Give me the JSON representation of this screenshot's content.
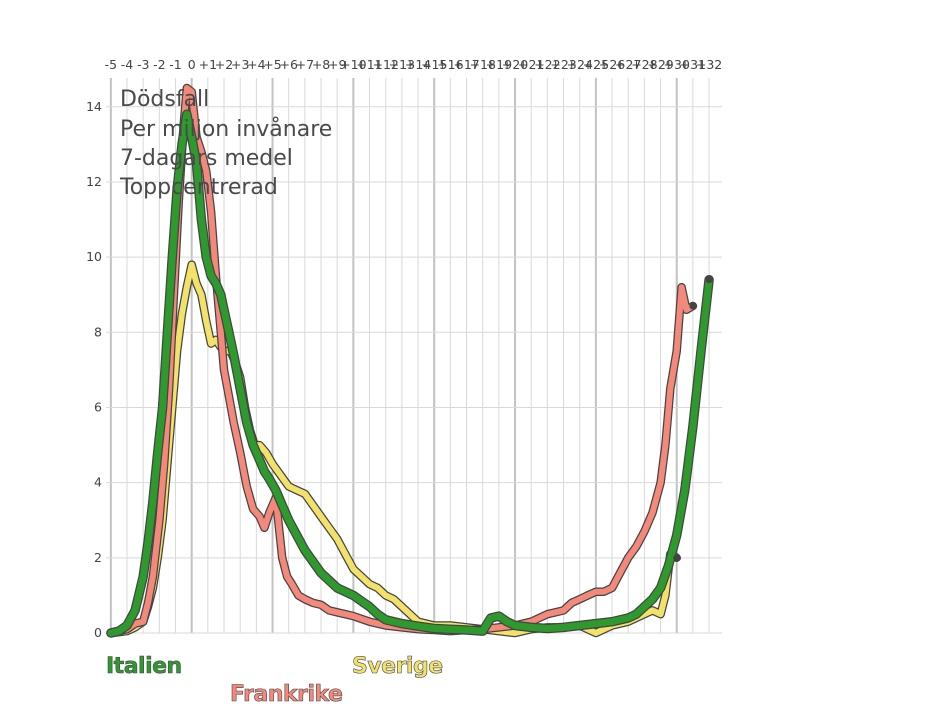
{
  "chart_data": {
    "type": "line",
    "title_lines": [
      "Dödsfall",
      "Per miljon invånare",
      "7-dagars medel",
      "Toppcentrerad"
    ],
    "xlabel": "",
    "ylabel": "",
    "xlim": [
      -5.3,
      32.8
    ],
    "ylim": [
      0,
      14.5
    ],
    "y_ticks": [
      "0",
      "2",
      "4",
      "6",
      "8",
      "10",
      "12",
      "14"
    ],
    "x_ticks": [
      "-5",
      "-4",
      "-3",
      "-2",
      "-1",
      "0",
      "+1",
      "+2",
      "+3",
      "+4",
      "+5",
      "+6",
      "+7",
      "+8",
      "+9",
      "+10",
      "+11",
      "+12",
      "+13",
      "+14",
      "+15",
      "+16",
      "+17",
      "+18",
      "+19",
      "+20",
      "+21",
      "+22",
      "+23",
      "+24",
      "+25",
      "+26",
      "+27",
      "+28",
      "+29",
      "+30",
      "+31",
      "+32"
    ],
    "grid": true,
    "colors": {
      "Frankrike": "#f4897b",
      "Italien": "#2e9a2e",
      "Sverige": "#f3e26a",
      "outline": "#444444",
      "grid": "#d9d9d9",
      "grid_major": "#c2c2c2"
    },
    "series": [
      {
        "name": "Frankrike",
        "x": [
          -5,
          -4.5,
          -4,
          -3.5,
          -3,
          -2.7,
          -2.4,
          -2,
          -1.7,
          -1.4,
          -1.1,
          -0.8,
          -0.5,
          -0.3,
          0,
          0.3,
          0.6,
          0.9,
          1.2,
          1.5,
          1.8,
          2,
          2.3,
          2.6,
          3,
          3.4,
          3.8,
          4.2,
          4.5,
          4.8,
          5.2,
          5.6,
          5.9,
          6.2,
          6.6,
          7,
          7.5,
          8,
          8.5,
          9,
          9.5,
          10,
          11,
          12,
          13,
          14,
          15,
          16,
          17,
          18,
          19,
          20,
          21,
          22,
          23,
          23.5,
          24,
          24.5,
          25,
          25.5,
          26,
          26.5,
          27,
          27.5,
          28,
          28.5,
          29,
          29.3,
          29.6,
          30,
          30.3,
          30.6,
          31
        ],
        "y": [
          0,
          0.05,
          0.1,
          0.25,
          0.3,
          0.8,
          1.5,
          3.0,
          4.5,
          6.5,
          9.0,
          11.5,
          13.5,
          14.5,
          14.4,
          13.2,
          12.8,
          12.3,
          11.2,
          9.5,
          8.0,
          7.0,
          6.3,
          5.6,
          4.8,
          3.9,
          3.3,
          3.1,
          2.8,
          3.2,
          3.6,
          2.0,
          1.5,
          1.3,
          1.0,
          0.9,
          0.8,
          0.75,
          0.6,
          0.55,
          0.5,
          0.45,
          0.3,
          0.2,
          0.15,
          0.1,
          0.08,
          0.05,
          0.08,
          0.1,
          0.15,
          0.2,
          0.3,
          0.5,
          0.6,
          0.8,
          0.9,
          1.0,
          1.1,
          1.1,
          1.2,
          1.6,
          2.0,
          2.3,
          2.7,
          3.2,
          4.0,
          5.0,
          6.5,
          7.5,
          9.2,
          8.6,
          8.7
        ]
      },
      {
        "name": "Italien",
        "x": [
          -5,
          -4.5,
          -4,
          -3.5,
          -3,
          -2.7,
          -2.4,
          -2.1,
          -1.8,
          -1.5,
          -1.2,
          -0.9,
          -0.6,
          -0.3,
          0,
          0.3,
          0.6,
          0.9,
          1.2,
          1.5,
          1.8,
          2,
          2.3,
          2.6,
          3,
          3.4,
          3.8,
          4.2,
          4.5,
          4.8,
          5.2,
          5.6,
          6,
          6.5,
          7,
          7.5,
          8,
          8.5,
          9,
          9.5,
          10,
          10.5,
          11,
          11.5,
          12,
          13,
          14,
          15,
          16,
          17,
          18,
          18.5,
          19,
          19.5,
          20,
          21,
          22,
          23,
          24,
          25,
          26,
          27,
          27.5,
          28,
          28.5,
          29,
          29.5,
          30,
          30.5,
          31,
          31.5,
          32
        ],
        "y": [
          0,
          0.05,
          0.2,
          0.6,
          1.5,
          2.4,
          3.5,
          4.8,
          6.0,
          8.0,
          10.0,
          11.8,
          13.0,
          13.8,
          13.2,
          12.5,
          11.0,
          10.0,
          9.5,
          9.3,
          9.0,
          8.6,
          8.0,
          7.4,
          6.5,
          5.6,
          5.0,
          4.6,
          4.3,
          4.1,
          3.8,
          3.4,
          3.0,
          2.6,
          2.2,
          1.9,
          1.6,
          1.4,
          1.2,
          1.1,
          1.0,
          0.85,
          0.7,
          0.5,
          0.35,
          0.25,
          0.18,
          0.12,
          0.1,
          0.08,
          0.05,
          0.4,
          0.45,
          0.3,
          0.2,
          0.15,
          0.12,
          0.15,
          0.2,
          0.25,
          0.3,
          0.4,
          0.5,
          0.7,
          0.9,
          1.2,
          1.8,
          2.6,
          3.8,
          5.5,
          7.5,
          9.4
        ]
      },
      {
        "name": "Sverige",
        "x": [
          -5,
          -4.5,
          -4,
          -3.5,
          -3,
          -2.7,
          -2.4,
          -2.1,
          -1.8,
          -1.5,
          -1.2,
          -0.9,
          -0.6,
          -0.3,
          0,
          0.3,
          0.6,
          0.9,
          1.2,
          1.5,
          1.8,
          2.1,
          2.4,
          2.7,
          3,
          3.3,
          3.6,
          3.9,
          4.2,
          4.6,
          5,
          5.5,
          6,
          6.5,
          7,
          7.5,
          8,
          8.5,
          9,
          9.5,
          10,
          10.5,
          11,
          11.5,
          12,
          12.5,
          13,
          13.5,
          14,
          15,
          16,
          17,
          18,
          19,
          20,
          21,
          22,
          23,
          24,
          25,
          26,
          27,
          28,
          28.5,
          29,
          29.3,
          29.6,
          30
        ],
        "y": [
          0,
          0.02,
          0.05,
          0.15,
          0.3,
          0.7,
          1.2,
          2.0,
          3.0,
          4.5,
          6.0,
          7.5,
          8.5,
          9.2,
          9.8,
          9.3,
          9.0,
          8.3,
          7.7,
          7.8,
          7.6,
          7.5,
          7.5,
          7.2,
          6.8,
          6.0,
          5.4,
          5.0,
          5.0,
          4.8,
          4.5,
          4.2,
          3.9,
          3.8,
          3.7,
          3.4,
          3.1,
          2.8,
          2.5,
          2.1,
          1.7,
          1.5,
          1.3,
          1.2,
          1.0,
          0.9,
          0.7,
          0.5,
          0.3,
          0.2,
          0.2,
          0.15,
          0.1,
          0.05,
          0.0,
          0.1,
          0.15,
          0.15,
          0.2,
          0.0,
          0.2,
          0.3,
          0.5,
          0.6,
          0.5,
          1.0,
          2.1,
          2.0
        ]
      }
    ]
  }
}
